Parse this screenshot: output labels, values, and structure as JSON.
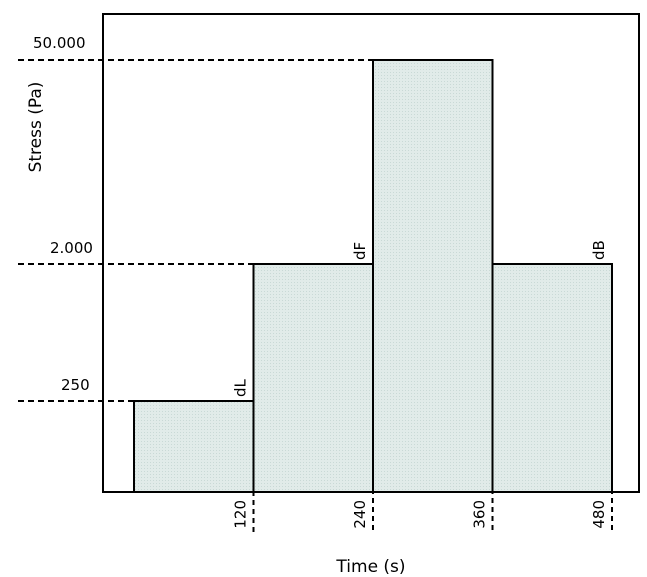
{
  "chart_data": {
    "type": "step-area",
    "xlabel": "Time (s)",
    "ylabel": "Stress (Pa)",
    "x_ticks": [
      "120",
      "240",
      "360",
      "480"
    ],
    "y_ticks": [
      "250",
      "2.000",
      "50.000"
    ],
    "segments": [
      {
        "x_start": 0,
        "x_end": 120,
        "y": 250,
        "label": "dL"
      },
      {
        "x_start": 120,
        "x_end": 240,
        "y": 2000,
        "label": "dF"
      },
      {
        "x_start": 240,
        "x_end": 360,
        "y": 50000,
        "label": ""
      },
      {
        "x_start": 360,
        "x_end": 480,
        "y": 2000,
        "label": "dB"
      }
    ],
    "fill_color": "#dde8e6",
    "grid": false
  }
}
